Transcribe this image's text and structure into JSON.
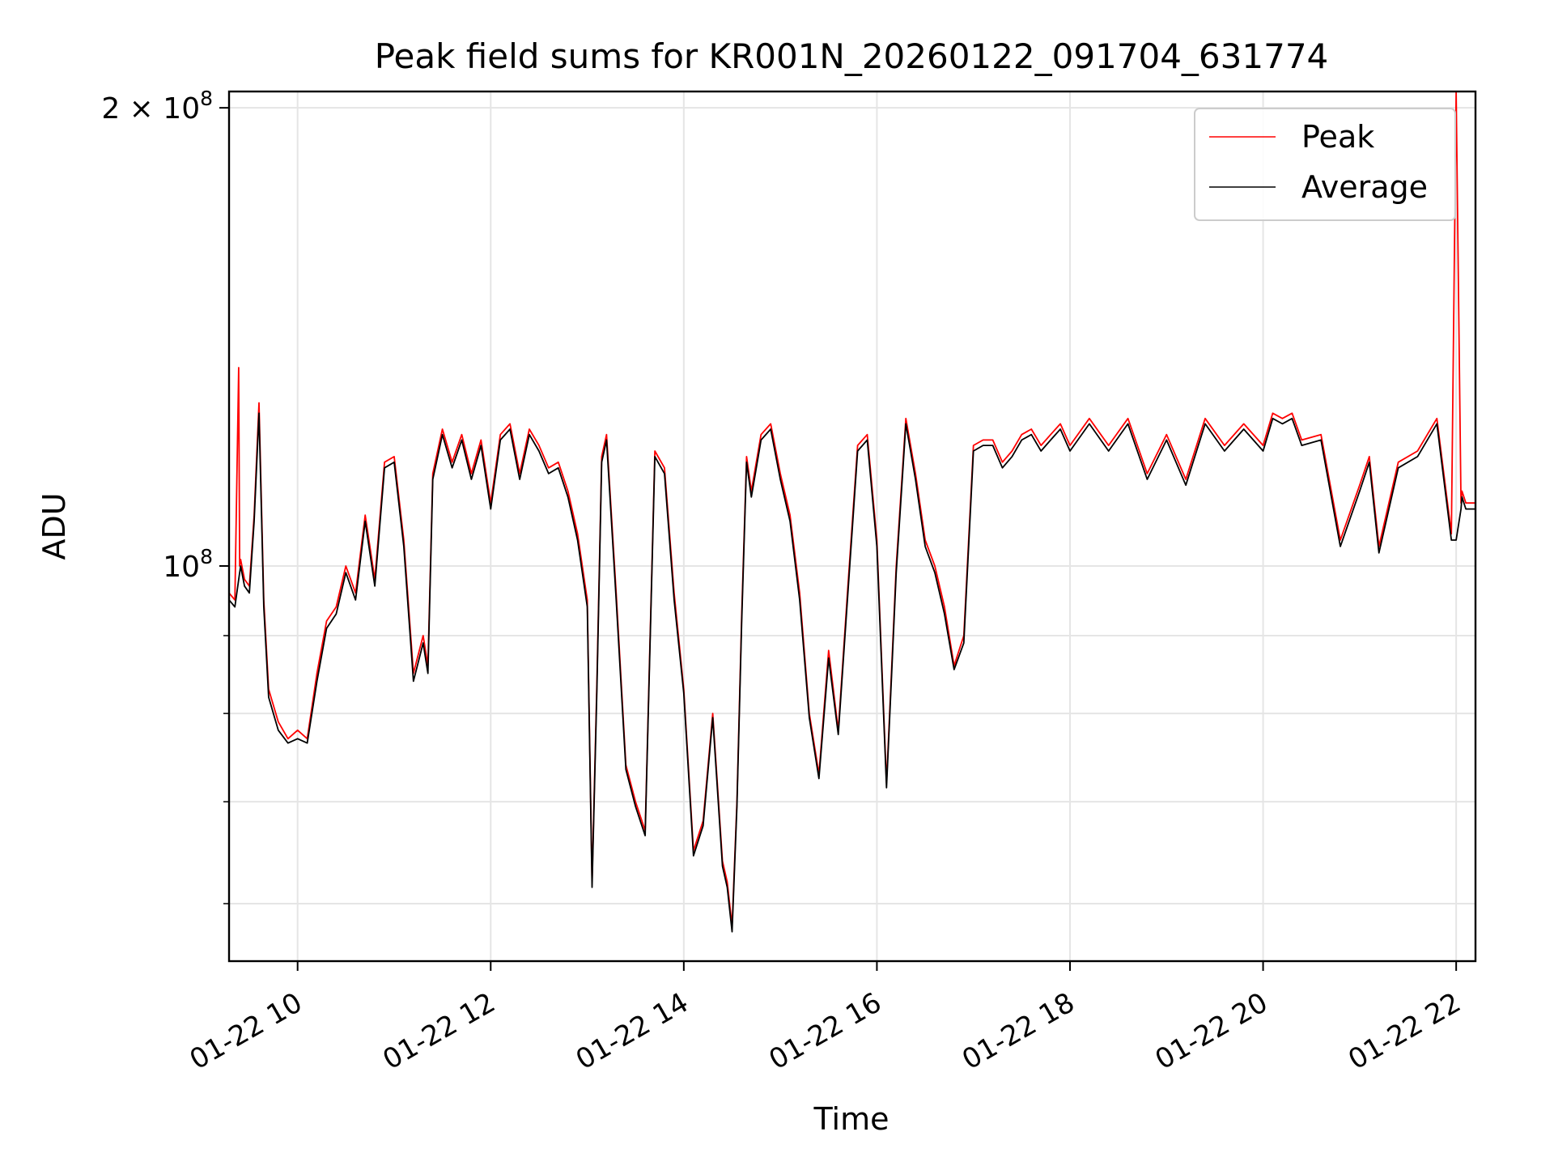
{
  "chart_data": {
    "type": "line",
    "title": "Peak field sums for KR001N_20260122_091704_631774",
    "xlabel": "Time",
    "ylabel": "ADU",
    "x_ticks": [
      "01-22 10",
      "01-22 12",
      "01-22 14",
      "01-22 16",
      "01-22 18",
      "01-22 20",
      "01-22 22"
    ],
    "y_major_ticks": [
      {
        "value": 100000000,
        "label_base": "10",
        "label_exp": "8",
        "label_coef": ""
      },
      {
        "value": 200000000,
        "label_base": "10",
        "label_exp": "8",
        "label_coef": "2 × "
      }
    ],
    "y_minor_ticks": [
      60000000,
      70000000,
      80000000,
      90000000
    ],
    "y_scale": "log",
    "ylim": [
      55000000,
      205000000
    ],
    "xlim_hours": [
      9.29,
      22.2
    ],
    "grid": true,
    "legend_position": "top-right",
    "colors": {
      "peak": "#ff0000",
      "average": "#000000",
      "grid": "#e5e5e5"
    },
    "series": [
      {
        "name": "Peak",
        "color": "#ff0000",
        "x_hours": [
          9.29,
          9.35,
          9.39,
          9.4,
          9.41,
          9.45,
          9.5,
          9.55,
          9.6,
          9.65,
          9.7,
          9.8,
          9.9,
          10.0,
          10.1,
          10.2,
          10.3,
          10.4,
          10.5,
          10.6,
          10.7,
          10.8,
          10.9,
          11.0,
          11.1,
          11.2,
          11.3,
          11.35,
          11.4,
          11.5,
          11.6,
          11.7,
          11.8,
          11.9,
          12.0,
          12.1,
          12.2,
          12.3,
          12.4,
          12.5,
          12.6,
          12.7,
          12.8,
          12.9,
          13.0,
          13.05,
          13.1,
          13.15,
          13.2,
          13.3,
          13.4,
          13.5,
          13.6,
          13.7,
          13.8,
          13.9,
          14.0,
          14.1,
          14.2,
          14.3,
          14.4,
          14.45,
          14.5,
          14.55,
          14.6,
          14.65,
          14.7,
          14.8,
          14.9,
          15.0,
          15.1,
          15.2,
          15.3,
          15.4,
          15.5,
          15.6,
          15.7,
          15.8,
          15.9,
          16.0,
          16.1,
          16.2,
          16.3,
          16.4,
          16.5,
          16.6,
          16.7,
          16.8,
          16.9,
          17.0,
          17.1,
          17.2,
          17.3,
          17.4,
          17.5,
          17.6,
          17.7,
          17.8,
          17.9,
          18.0,
          18.2,
          18.4,
          18.6,
          18.8,
          19.0,
          19.2,
          19.4,
          19.6,
          19.8,
          20.0,
          20.1,
          20.2,
          20.3,
          20.4,
          20.6,
          20.8,
          21.0,
          21.1,
          21.2,
          21.4,
          21.6,
          21.8,
          21.95,
          22.0,
          22.05,
          22.06,
          22.1,
          22.2
        ],
        "values": [
          96000000,
          95000000,
          135000000,
          100000000,
          101000000,
          98000000,
          97000000,
          108000000,
          128000000,
          95000000,
          83000000,
          79000000,
          77000000,
          78000000,
          77000000,
          85000000,
          92000000,
          94000000,
          100000000,
          96000000,
          108000000,
          98000000,
          117000000,
          118000000,
          104000000,
          85000000,
          90000000,
          86000000,
          115000000,
          123000000,
          117000000,
          122000000,
          115000000,
          121000000,
          110000000,
          122000000,
          124000000,
          115000000,
          123000000,
          120000000,
          116000000,
          117000000,
          112000000,
          105000000,
          95000000,
          62000000,
          84000000,
          118000000,
          122000000,
          96000000,
          74000000,
          70000000,
          67000000,
          119000000,
          116000000,
          96000000,
          83000000,
          65000000,
          68000000,
          80000000,
          64000000,
          62000000,
          58000000,
          70000000,
          93000000,
          118000000,
          112000000,
          122000000,
          124000000,
          115000000,
          108000000,
          96000000,
          80000000,
          73000000,
          88000000,
          78000000,
          97000000,
          120000000,
          122000000,
          104000000,
          72000000,
          100000000,
          125000000,
          115000000,
          104000000,
          100000000,
          94000000,
          86000000,
          90000000,
          120000000,
          121000000,
          121000000,
          117000000,
          119000000,
          122000000,
          123000000,
          120000000,
          122000000,
          124000000,
          120000000,
          125000000,
          120000000,
          125000000,
          115000000,
          122000000,
          114000000,
          125000000,
          120000000,
          124000000,
          120000000,
          126000000,
          125000000,
          126000000,
          121000000,
          122000000,
          104000000,
          113000000,
          118000000,
          103000000,
          117000000,
          119000000,
          125000000,
          105000000,
          205000000,
          110000000,
          112000000,
          110000000,
          110000000
        ]
      },
      {
        "name": "Average",
        "color": "#000000",
        "x_hours": [
          9.29,
          9.35,
          9.4,
          9.41,
          9.45,
          9.5,
          9.55,
          9.6,
          9.65,
          9.7,
          9.8,
          9.9,
          10.0,
          10.1,
          10.2,
          10.3,
          10.4,
          10.5,
          10.6,
          10.7,
          10.8,
          10.9,
          11.0,
          11.1,
          11.2,
          11.3,
          11.35,
          11.4,
          11.5,
          11.6,
          11.7,
          11.8,
          11.9,
          12.0,
          12.1,
          12.2,
          12.3,
          12.4,
          12.5,
          12.6,
          12.7,
          12.8,
          12.9,
          13.0,
          13.05,
          13.1,
          13.15,
          13.2,
          13.3,
          13.4,
          13.5,
          13.6,
          13.7,
          13.8,
          13.9,
          14.0,
          14.1,
          14.2,
          14.3,
          14.4,
          14.45,
          14.5,
          14.55,
          14.6,
          14.65,
          14.7,
          14.8,
          14.9,
          15.0,
          15.1,
          15.2,
          15.3,
          15.4,
          15.5,
          15.6,
          15.7,
          15.8,
          15.9,
          16.0,
          16.1,
          16.2,
          16.3,
          16.4,
          16.5,
          16.6,
          16.7,
          16.8,
          16.9,
          17.0,
          17.1,
          17.2,
          17.3,
          17.4,
          17.5,
          17.6,
          17.7,
          17.8,
          17.9,
          18.0,
          18.2,
          18.4,
          18.6,
          18.8,
          19.0,
          19.2,
          19.4,
          19.6,
          19.8,
          20.0,
          20.1,
          20.2,
          20.3,
          20.4,
          20.6,
          20.8,
          21.0,
          21.1,
          21.2,
          21.4,
          21.6,
          21.8,
          21.95,
          22.0,
          22.05,
          22.06,
          22.1,
          22.2
        ],
        "values": [
          95000000,
          94000000,
          99000000,
          100000000,
          97000000,
          96000000,
          107000000,
          126000000,
          94000000,
          82000000,
          78000000,
          76500000,
          77000000,
          76500000,
          84000000,
          91000000,
          93000000,
          99000000,
          95000000,
          107000000,
          97000000,
          116000000,
          117000000,
          103000000,
          84000000,
          89000000,
          85000000,
          114000000,
          122000000,
          116000000,
          121000000,
          114000000,
          120000000,
          109000000,
          121000000,
          123000000,
          114000000,
          122000000,
          119000000,
          115000000,
          116000000,
          111000000,
          104000000,
          94000000,
          61500000,
          83000000,
          117000000,
          121000000,
          95000000,
          73500000,
          69500000,
          66500000,
          118000000,
          115000000,
          95000000,
          82500000,
          64500000,
          67500000,
          79500000,
          63500000,
          61500000,
          57500000,
          69500000,
          92000000,
          117000000,
          111000000,
          121000000,
          123000000,
          114000000,
          107000000,
          95000000,
          79500000,
          72500000,
          87000000,
          77500000,
          96000000,
          119000000,
          121000000,
          103000000,
          71500000,
          99000000,
          124000000,
          114000000,
          103000000,
          99000000,
          93000000,
          85500000,
          89000000,
          119000000,
          120000000,
          120000000,
          116000000,
          118000000,
          121000000,
          122000000,
          119000000,
          121000000,
          123000000,
          119000000,
          124000000,
          119000000,
          124000000,
          114000000,
          121000000,
          113000000,
          124000000,
          119000000,
          123000000,
          119000000,
          125000000,
          124000000,
          125000000,
          120000000,
          121000000,
          103000000,
          112000000,
          117000000,
          102000000,
          116000000,
          118000000,
          124000000,
          104000000,
          104000000,
          109000000,
          111000000,
          109000000,
          109000000
        ]
      }
    ]
  }
}
